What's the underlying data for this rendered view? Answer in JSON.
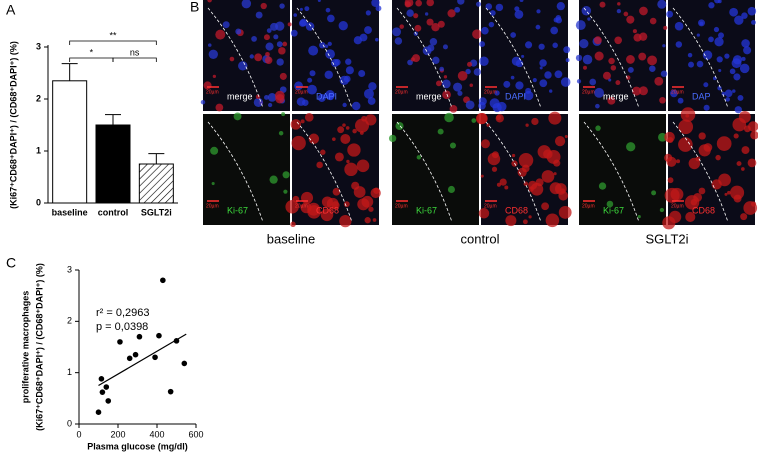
{
  "panel_labels": [
    "A",
    "B",
    "C"
  ],
  "chart_data": [
    {
      "type": "bar",
      "y_label": "(Ki67⁺CD68⁺DAPI⁺) / (CD68⁺DAPI⁺) (%)",
      "categories": [
        "baseline",
        "control",
        "SGLT2i"
      ],
      "values": [
        2.35,
        1.5,
        0.75
      ],
      "errors": [
        0.33,
        0.2,
        0.2
      ],
      "colors": [
        "#ffffff",
        "#000000",
        "#ffffff"
      ],
      "hatch": [
        false,
        false,
        true
      ],
      "annotations": [
        "**",
        "*",
        "ns"
      ],
      "ylim": [
        0,
        3
      ],
      "yticks": [
        0,
        1,
        2,
        3
      ]
    },
    {
      "type": "scatter",
      "x_label": "Plasma glucose (mg/dl)",
      "y_label": [
        "proliferative macrophages",
        "(Ki67⁺CD68⁺DAPI⁺) / (CD68⁺DAPI⁺) (%)"
      ],
      "x": [
        100,
        115,
        120,
        140,
        150,
        210,
        260,
        290,
        310,
        390,
        410,
        430,
        470,
        500,
        540
      ],
      "y": [
        0.23,
        0.88,
        0.62,
        0.72,
        0.45,
        1.6,
        1.28,
        1.35,
        1.7,
        1.3,
        1.72,
        2.8,
        0.63,
        1.62,
        1.18
      ],
      "color": "#000000",
      "fit": {
        "x": [
          100,
          550
        ],
        "y": [
          0.75,
          1.75
        ]
      },
      "annotations": [
        "r² = 0,2963",
        "p = 0,0398"
      ],
      "xlim": [
        0,
        600
      ],
      "xticks": [
        0,
        200,
        400,
        600
      ],
      "ylim": [
        0,
        3
      ],
      "yticks": [
        0,
        1,
        2,
        3
      ]
    }
  ],
  "micrographs": {
    "groups": [
      {
        "name": "baseline",
        "tiles": [
          "merge",
          "DAPI",
          "Ki-67",
          "CD68"
        ]
      },
      {
        "name": "control",
        "tiles": [
          "merge",
          "DAPI",
          "Ki-67",
          "CD68"
        ]
      },
      {
        "name": "SGLT2i",
        "tiles": [
          "merge",
          "DAP",
          "Ki-67",
          "CD68"
        ]
      }
    ],
    "scale_label": "20µm"
  }
}
